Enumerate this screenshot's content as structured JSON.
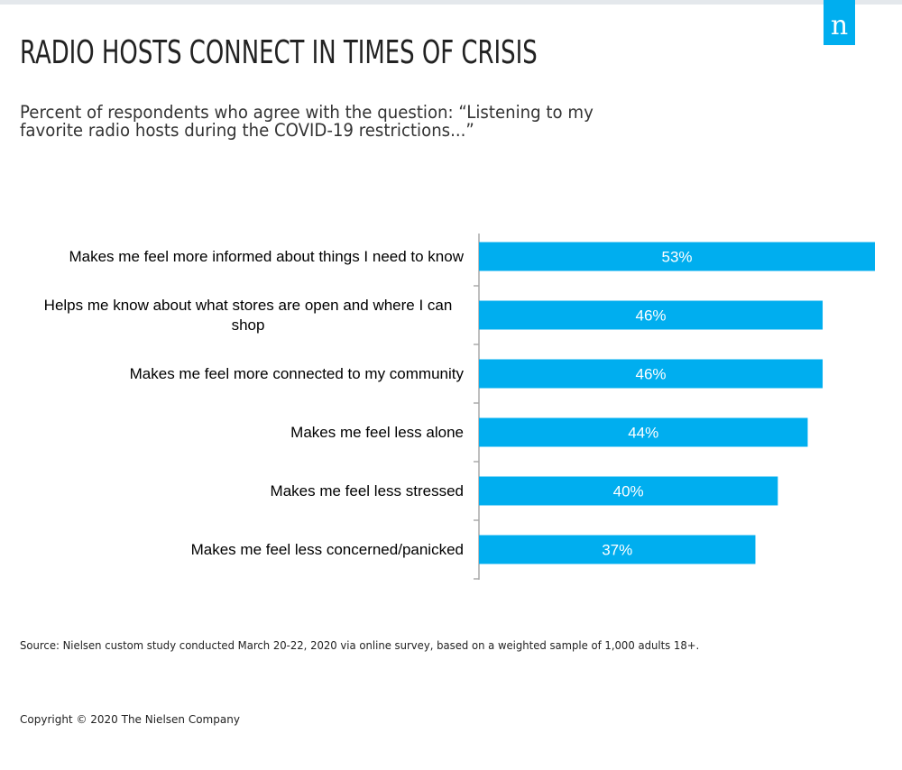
{
  "logo": "n",
  "chart_data": {
    "type": "bar",
    "orientation": "horizontal",
    "title": "RADIO HOSTS CONNECT IN TIMES OF CRISIS",
    "subtitle": "Percent of respondents who agree with the question: “Listening to my favorite radio hosts during the COVID-19 restrictions...”",
    "categories": [
      "Makes me feel more informed about things I need to know",
      "Helps me know about what stores are open and where I can shop",
      "Makes me feel more connected to my community",
      "Makes me feel less alone",
      "Makes me feel less stressed",
      "Makes me feel less concerned/panicked"
    ],
    "values": [
      53,
      46,
      46,
      44,
      40,
      37
    ],
    "data_labels": [
      "53%",
      "46%",
      "46%",
      "44%",
      "40%",
      "37%"
    ],
    "xlabel": "",
    "ylabel": "",
    "xlim": [
      0,
      53
    ],
    "grid": false,
    "bar_color": "#00aeef"
  },
  "source": "Source: Nielsen custom study conducted March 20-22, 2020 via online survey, based on a weighted sample of 1,000 adults 18+.",
  "copyright": "Copyright © 2020 The Nielsen Company"
}
